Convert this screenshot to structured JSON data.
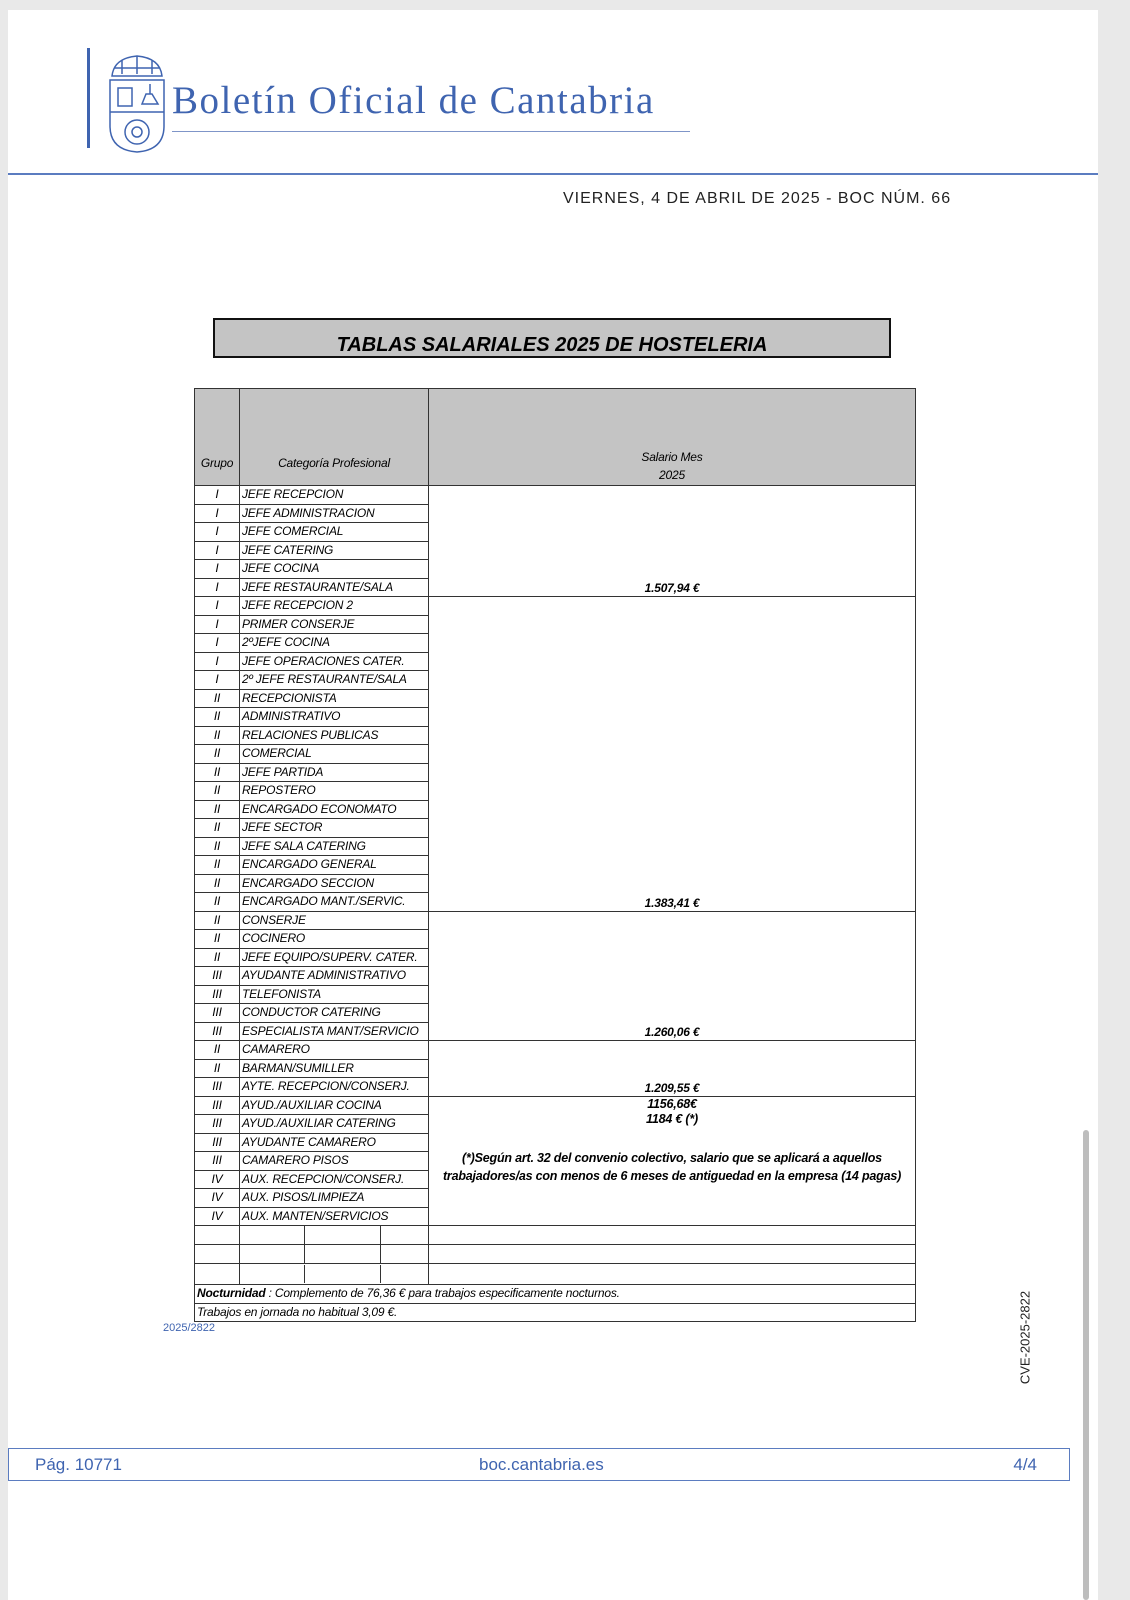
{
  "header": {
    "brand": "Boletín Oficial de Cantabria",
    "date_line": "VIERNES, 4 DE ABRIL DE 2025 - BOC NÚM. 66",
    "colors": {
      "brand_blue": "#3f64b0"
    }
  },
  "table": {
    "title": "TABLAS SALARIALES  2025 DE HOSTELERIA",
    "headers": {
      "grupo": "Grupo",
      "categoria": "Categoría Profesional",
      "salario_line1": "Salario Mes",
      "salario_line2": "2025"
    },
    "rows": [
      [
        "I",
        "JEFE RECEPCION"
      ],
      [
        "I",
        "JEFE ADMINISTRACION"
      ],
      [
        "I",
        "JEFE COMERCIAL"
      ],
      [
        "I",
        "JEFE CATERING"
      ],
      [
        "I",
        "JEFE COCINA"
      ],
      [
        "I",
        "JEFE RESTAURANTE/SALA"
      ],
      [
        "I",
        "JEFE RECEPCION 2"
      ],
      [
        "I",
        "PRIMER CONSERJE"
      ],
      [
        "I",
        "2ºJEFE COCINA"
      ],
      [
        "I",
        "JEFE OPERACIONES CATER."
      ],
      [
        "I",
        "2º JEFE RESTAURANTE/SALA"
      ],
      [
        "II",
        "RECEPCIONISTA"
      ],
      [
        "II",
        "ADMINISTRATIVO"
      ],
      [
        "II",
        "RELACIONES PUBLICAS"
      ],
      [
        "II",
        "COMERCIAL"
      ],
      [
        "II",
        "JEFE PARTIDA"
      ],
      [
        "II",
        "REPOSTERO"
      ],
      [
        "II",
        "ENCARGADO ECONOMATO"
      ],
      [
        "II",
        "JEFE SECTOR"
      ],
      [
        "II",
        "JEFE SALA CATERING"
      ],
      [
        "II",
        "ENCARGADO GENERAL"
      ],
      [
        "II",
        "ENCARGADO SECCION"
      ],
      [
        "II",
        "ENCARGADO MANT./SERVIC."
      ],
      [
        "II",
        "CONSERJE"
      ],
      [
        "II",
        "COCINERO"
      ],
      [
        "II",
        "JEFE EQUIPO/SUPERV. CATER."
      ],
      [
        "III",
        "AYUDANTE ADMINISTRATIVO"
      ],
      [
        "III",
        "TELEFONISTA"
      ],
      [
        "III",
        "CONDUCTOR CATERING"
      ],
      [
        "III",
        "ESPECIALISTA MANT/SERVICIO"
      ],
      [
        "II",
        "CAMARERO"
      ],
      [
        "II",
        "BARMAN/SUMILLER"
      ],
      [
        "III",
        "AYTE. RECEPCION/CONSERJ."
      ],
      [
        "III",
        "AYUD./AUXILIAR COCINA"
      ],
      [
        "III",
        "AYUD./AUXILIAR CATERING"
      ],
      [
        "III",
        "AYUDANTE CAMARERO"
      ],
      [
        "III",
        "CAMARERO PISOS"
      ],
      [
        "IV",
        "AUX. RECEPCION/CONSERJ."
      ],
      [
        "IV",
        "AUX. PISOS/LIMPIEZA"
      ],
      [
        "IV",
        "AUX. MANTEN/SERVICIOS"
      ]
    ],
    "salary_groups": [
      {
        "rows": 6,
        "value": "1.507,94 €"
      },
      {
        "rows": 17,
        "value": "1.383,41 €"
      },
      {
        "rows": 7,
        "value": "1.260,06 €"
      },
      {
        "rows": 3,
        "value": "1.209,55 €"
      },
      {
        "rows": 7,
        "value": "1156,68€",
        "value2": "1184 € (*)",
        "note": "(*)Según art. 32 del convenio colectivo, salario que se aplicará a aquellos trabajadores/as con menos de 6 meses de antiguedad en la empresa (14 pagas)"
      }
    ],
    "empty_rows": 3,
    "nocturnidad_label": "Nocturnidad",
    "nocturnidad_text": " : Complemento de 76,36 € para trabajos especificamente nocturnos.",
    "jornada_text": "Trabajos en jornada no habitual 3,09 €."
  },
  "ref": "2025/2822",
  "cve": "CVE-2025-2822",
  "footer": {
    "page": "Pág. 10771",
    "site": "boc.cantabria.es",
    "count": "4/4"
  }
}
